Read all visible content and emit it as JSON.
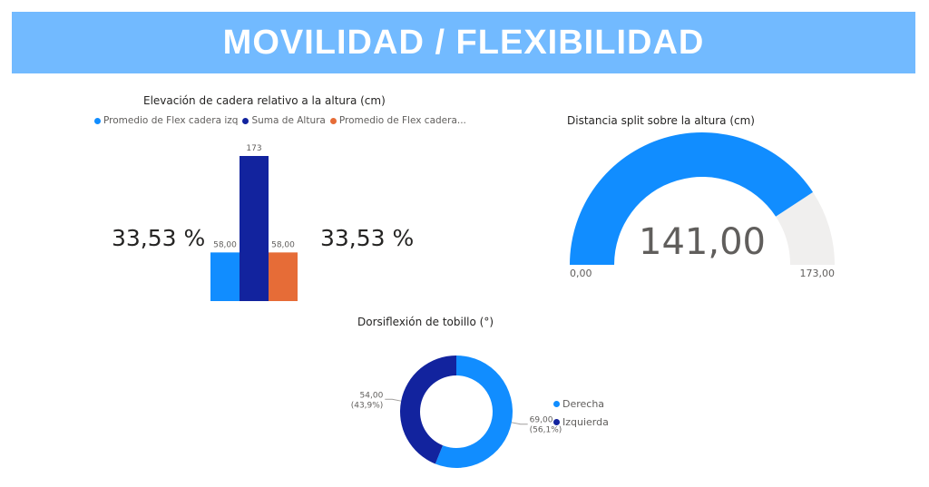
{
  "header": {
    "title": "MOVILIDAD / FLEXIBILIDAD"
  },
  "hip_chart": {
    "title": "Elevación de cadera relativo a la altura (cm)",
    "left_kpi": "33,53 %",
    "right_kpi": "33,53 %"
  },
  "split_gauge": {
    "title": "Distancia split sobre la altura (cm)",
    "value_label": "141,00",
    "min_label": "0,00",
    "max_label": "173,00"
  },
  "ankle_chart": {
    "title": "Dorsiflexión de tobillo (°)"
  },
  "colors": {
    "light_blue": "#118dff",
    "dark_blue": "#12239e",
    "orange": "#e66c37",
    "gauge_track": "#f0efee",
    "banner": "#72baff"
  },
  "chart_data": [
    {
      "type": "bar",
      "title": "Elevación de cadera relativo a la altura (cm)",
      "categories": [
        ""
      ],
      "series": [
        {
          "name": "Promedio de Flex cadera izq",
          "values": [
            58
          ],
          "label": "58,00",
          "color": "#118dff"
        },
        {
          "name": "Suma de Altura",
          "values": [
            173
          ],
          "label": "173",
          "color": "#12239e"
        },
        {
          "name": "Promedio de Flex cadera...",
          "values": [
            58
          ],
          "label": "58,00",
          "color": "#e66c37"
        }
      ],
      "legend": "top-left"
    },
    {
      "type": "gauge",
      "title": "Distancia split sobre la altura (cm)",
      "value": 141,
      "min": 0,
      "max": 173
    },
    {
      "type": "pie",
      "title": "Dorsiflexión de tobillo (°)",
      "slices": [
        {
          "name": "Derecha",
          "value": 69,
          "value_label": "69,00",
          "pct_label": "(56,1%)",
          "color": "#118dff"
        },
        {
          "name": "Izquierda",
          "value": 54,
          "value_label": "54,00",
          "pct_label": "(43,9%)",
          "color": "#12239e"
        }
      ],
      "legend": "right"
    }
  ]
}
